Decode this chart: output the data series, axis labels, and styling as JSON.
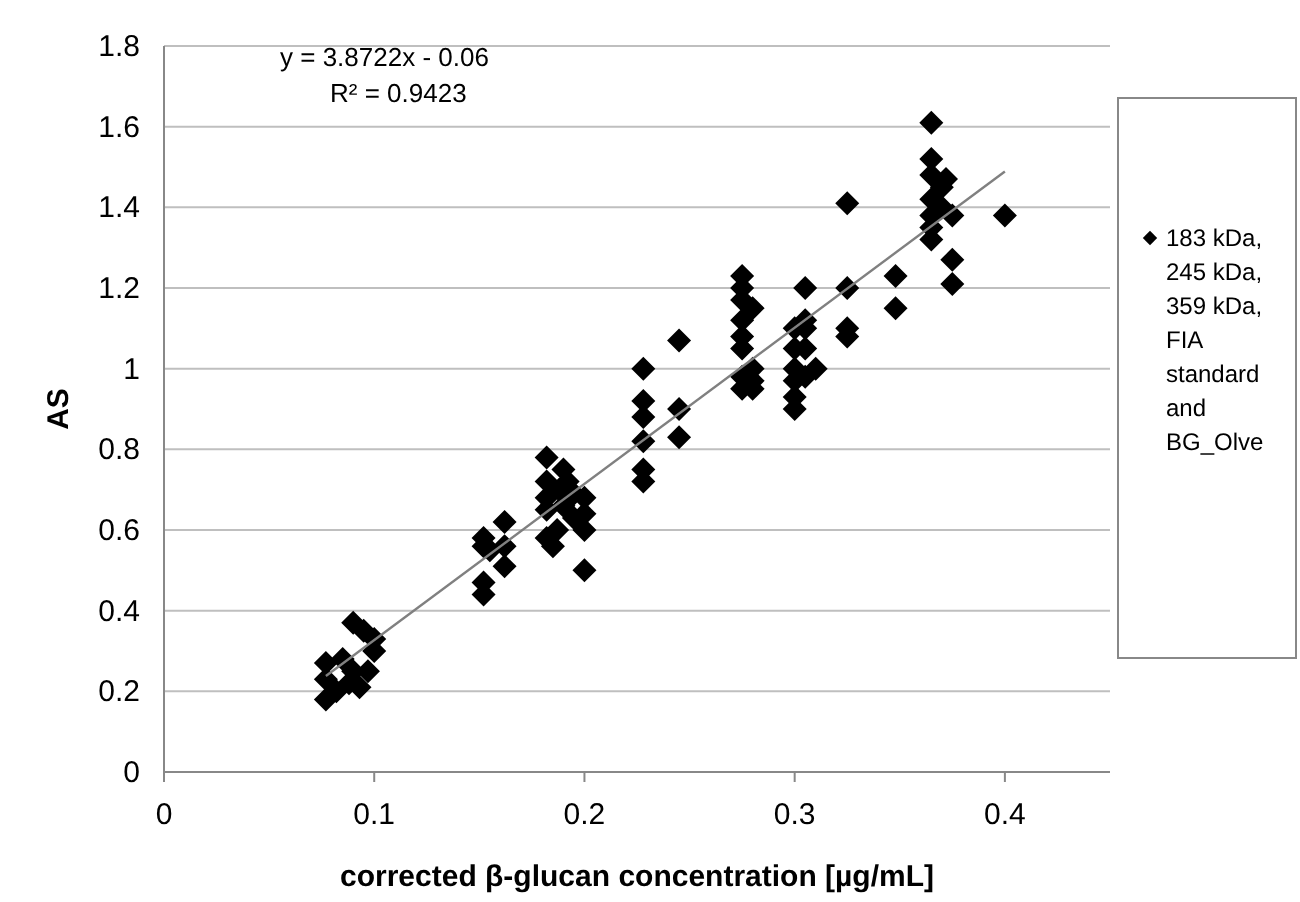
{
  "chart_data": {
    "type": "scatter",
    "xlabel": "corrected β-glucan concentration [µg/mL]",
    "ylabel": "AS",
    "xlim": [
      0,
      0.45
    ],
    "ylim": [
      0,
      1.8
    ],
    "xticks": [
      0,
      0.1,
      0.2,
      0.3,
      0.4
    ],
    "yticks": [
      0,
      0.2,
      0.4,
      0.6,
      0.8,
      1,
      1.2,
      1.4,
      1.6,
      1.8
    ],
    "grid": "y",
    "legend": "right",
    "marker": "diamond",
    "annotations": [
      "y = 3.8722x - 0.06",
      "R² = 0.9423"
    ],
    "series": [
      {
        "name": "183 kDa, 245 kDa, 359 kDa, FIA standard and BG_Olve",
        "color": "#000000",
        "x": [
          0.077,
          0.077,
          0.077,
          0.082,
          0.085,
          0.088,
          0.09,
          0.09,
          0.093,
          0.095,
          0.097,
          0.1,
          0.1,
          0.152,
          0.152,
          0.152,
          0.152,
          0.155,
          0.162,
          0.162,
          0.162,
          0.182,
          0.182,
          0.182,
          0.182,
          0.182,
          0.185,
          0.188,
          0.19,
          0.19,
          0.192,
          0.195,
          0.195,
          0.2,
          0.2,
          0.2,
          0.2,
          0.187,
          0.228,
          0.228,
          0.228,
          0.228,
          0.228,
          0.228,
          0.245,
          0.245,
          0.245,
          0.275,
          0.275,
          0.275,
          0.275,
          0.275,
          0.275,
          0.275,
          0.275,
          0.28,
          0.28,
          0.28,
          0.28,
          0.3,
          0.3,
          0.3,
          0.3,
          0.3,
          0.3,
          0.305,
          0.305,
          0.305,
          0.305,
          0.305,
          0.31,
          0.325,
          0.325,
          0.325,
          0.325,
          0.348,
          0.348,
          0.365,
          0.365,
          0.365,
          0.365,
          0.365,
          0.365,
          0.365,
          0.37,
          0.37,
          0.372,
          0.375,
          0.375,
          0.375,
          0.4
        ],
        "values": [
          0.18,
          0.23,
          0.27,
          0.2,
          0.28,
          0.22,
          0.37,
          0.25,
          0.21,
          0.35,
          0.25,
          0.3,
          0.33,
          0.44,
          0.47,
          0.56,
          0.58,
          0.55,
          0.62,
          0.56,
          0.51,
          0.78,
          0.72,
          0.68,
          0.65,
          0.58,
          0.56,
          0.7,
          0.75,
          0.66,
          0.72,
          0.69,
          0.63,
          0.68,
          0.64,
          0.6,
          0.5,
          0.6,
          1.0,
          0.92,
          0.88,
          0.82,
          0.75,
          0.72,
          1.07,
          0.9,
          0.83,
          1.23,
          1.2,
          1.17,
          1.12,
          1.08,
          1.05,
          0.98,
          0.95,
          1.15,
          0.97,
          0.95,
          1.0,
          1.1,
          1.05,
          1.0,
          0.97,
          0.93,
          0.9,
          1.2,
          1.1,
          1.05,
          0.98,
          1.12,
          1.0,
          1.41,
          1.2,
          1.1,
          1.08,
          1.23,
          1.15,
          1.61,
          1.52,
          1.48,
          1.42,
          1.38,
          1.35,
          1.32,
          1.45,
          1.4,
          1.47,
          1.27,
          1.21,
          1.38,
          1.38
        ]
      },
      {
        "type": "line",
        "marker": "none",
        "color": "#808080",
        "x": [
          0.077,
          0.4
        ],
        "values": [
          0.238,
          1.489
        ]
      }
    ]
  }
}
